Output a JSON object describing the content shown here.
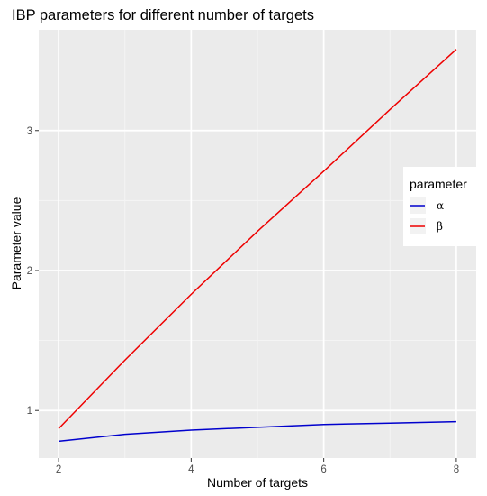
{
  "chart_data": {
    "type": "line",
    "title": "IBP parameters for different number of targets",
    "xlabel": "Number of targets",
    "ylabel": "Parameter value",
    "xlim": [
      1.7,
      8.3
    ],
    "ylim": [
      0.66,
      3.72
    ],
    "x_ticks": [
      "2",
      "4",
      "6",
      "8"
    ],
    "y_ticks": [
      "1",
      "2",
      "3"
    ],
    "grid": true,
    "legend": {
      "title": "parameter",
      "position": "right"
    },
    "x": [
      2,
      3,
      4,
      5,
      6,
      7,
      8
    ],
    "series": [
      {
        "name": "α",
        "color": "#0000cd",
        "values": [
          0.78,
          0.83,
          0.86,
          0.88,
          0.9,
          0.91,
          0.92
        ]
      },
      {
        "name": "β",
        "color": "#ee0000",
        "values": [
          0.87,
          1.36,
          1.83,
          2.28,
          2.71,
          3.15,
          3.58
        ]
      }
    ]
  }
}
